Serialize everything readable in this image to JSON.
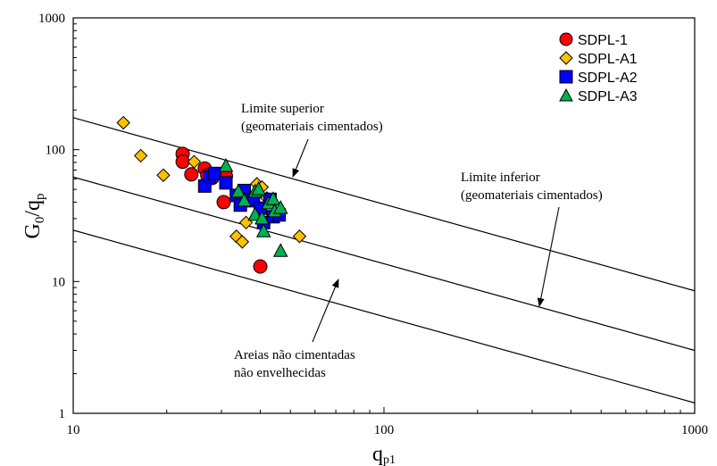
{
  "chart_data": {
    "type": "scatter",
    "x_scale": "log",
    "y_scale": "log",
    "xlim": [
      10,
      1000
    ],
    "ylim": [
      1,
      1000
    ],
    "x_ticks": [
      "10",
      "100",
      "1000"
    ],
    "y_ticks": [
      "1",
      "10",
      "100",
      "1000"
    ],
    "xlabel_main": "q",
    "xlabel_sub": "p1",
    "ylabel_parts": {
      "g": "G",
      "zero": "0",
      "slash": "/q",
      "p": "p"
    },
    "legend_position": "top-right",
    "series": [
      {
        "name": "SDPL-1",
        "marker": "circle",
        "color": "#ff0000",
        "points": [
          [
            22.5,
            93
          ],
          [
            22.5,
            81
          ],
          [
            24,
            65
          ],
          [
            26.5,
            72
          ],
          [
            27,
            64
          ],
          [
            28,
            61
          ],
          [
            30.5,
            40
          ],
          [
            31,
            63
          ],
          [
            40,
            13
          ]
        ]
      },
      {
        "name": "SDPL-A1",
        "marker": "diamond",
        "color": "#ffc000",
        "points": [
          [
            14.5,
            160
          ],
          [
            16.5,
            90
          ],
          [
            19.5,
            64
          ],
          [
            24.5,
            81
          ],
          [
            33.5,
            22
          ],
          [
            35,
            20
          ],
          [
            36,
            28
          ],
          [
            39,
            55
          ],
          [
            40.5,
            52
          ],
          [
            42,
            43
          ],
          [
            53.5,
            22
          ]
        ]
      },
      {
        "name": "SDPL-A2",
        "marker": "square",
        "color": "#0000ff",
        "points": [
          [
            26.5,
            53
          ],
          [
            27.5,
            62
          ],
          [
            28.5,
            66
          ],
          [
            31,
            56
          ],
          [
            33.5,
            45
          ],
          [
            34.5,
            38
          ],
          [
            35.5,
            49
          ],
          [
            36,
            42
          ],
          [
            38,
            41
          ],
          [
            40,
            36
          ],
          [
            41,
            28
          ],
          [
            43,
            42
          ],
          [
            44,
            31
          ],
          [
            46,
            32
          ]
        ]
      },
      {
        "name": "SDPL-A3",
        "marker": "triangle",
        "color": "#00b050",
        "points": [
          [
            31,
            75
          ],
          [
            34,
            48
          ],
          [
            35.5,
            41
          ],
          [
            38.5,
            32
          ],
          [
            38.5,
            48
          ],
          [
            39.5,
            50
          ],
          [
            40.5,
            30
          ],
          [
            41,
            24
          ],
          [
            42.5,
            39
          ],
          [
            44,
            42
          ],
          [
            44.5,
            34
          ],
          [
            46.5,
            36
          ],
          [
            46.5,
            17
          ]
        ]
      }
    ],
    "lines": [
      {
        "id": "upper",
        "points": [
          [
            10,
            175
          ],
          [
            1000,
            8.5
          ]
        ]
      },
      {
        "id": "middle",
        "points": [
          [
            10,
            62
          ],
          [
            1000,
            3
          ]
        ]
      },
      {
        "id": "lower",
        "points": [
          [
            10,
            24.5
          ],
          [
            1000,
            1.2
          ]
        ]
      }
    ],
    "annotations": [
      {
        "lines": [
          "Limite superior",
          "(geomateriais cimentados)"
        ]
      },
      {
        "lines": [
          "Limite inferior",
          "(geomateriais cimentados)"
        ]
      },
      {
        "lines": [
          "Areias não cimentadas",
          "não envelhecidas"
        ]
      }
    ]
  }
}
